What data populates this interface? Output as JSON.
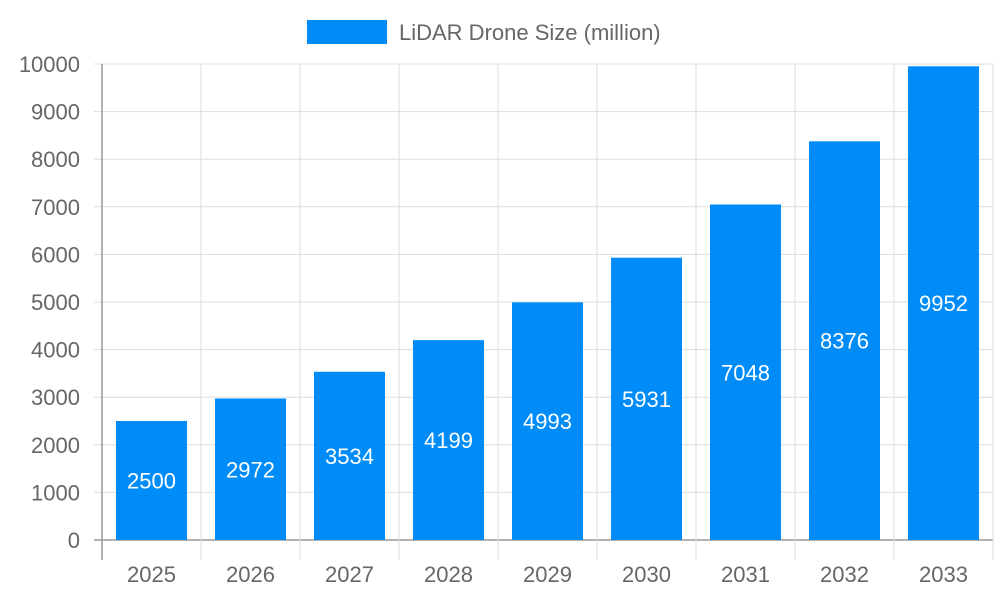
{
  "chart_data": {
    "type": "bar",
    "categories": [
      "2025",
      "2026",
      "2027",
      "2028",
      "2029",
      "2030",
      "2031",
      "2032",
      "2033"
    ],
    "series": [
      {
        "name": "LiDAR Drone Size (million)",
        "values": [
          2500,
          2972,
          3534,
          4199,
          4993,
          5931,
          7048,
          8376,
          9952
        ],
        "color": "#008cf8"
      }
    ],
    "ylim": [
      0,
      10000
    ],
    "yticks": [
      0,
      1000,
      2000,
      3000,
      4000,
      5000,
      6000,
      7000,
      8000,
      9000,
      10000
    ],
    "grid": true,
    "legend": "top-center",
    "data_labels": true,
    "title": "",
    "xlabel": "",
    "ylabel": ""
  }
}
